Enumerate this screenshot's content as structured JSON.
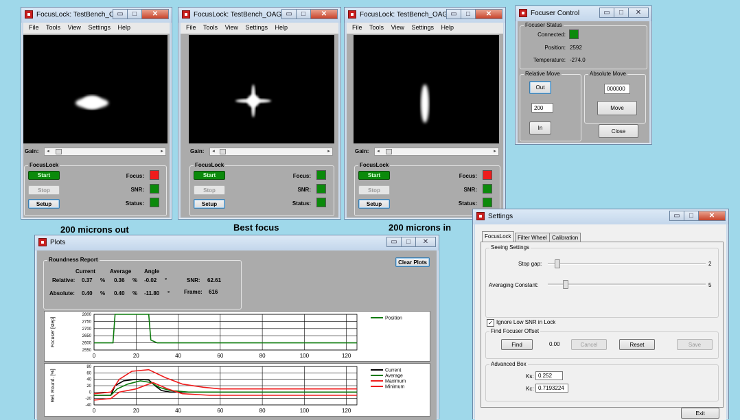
{
  "focuslock_windows": [
    {
      "title": "FocusLock: TestBench_OAG",
      "menu": [
        "File",
        "Tools",
        "View",
        "Settings",
        "Help"
      ],
      "gain_label": "Gain:",
      "group_title": "FocusLock",
      "start_label": "Start",
      "stop_label": "Stop",
      "setup_label": "Setup",
      "focus_label": "Focus:",
      "snr_label": "SNR:",
      "status_label": "Status:",
      "focus_color": "#ee1c1c",
      "snr_color": "#0b8a0b",
      "status_color": "#0b8a0b",
      "star_shape": "horizontal-blob"
    },
    {
      "title": "FocusLock: TestBench_OAG",
      "menu": [
        "File",
        "Tools",
        "View",
        "Settings",
        "Help"
      ],
      "gain_label": "Gain:",
      "group_title": "FocusLock",
      "start_label": "Start",
      "stop_label": "Stop",
      "setup_label": "Setup",
      "focus_label": "Focus:",
      "snr_label": "SNR:",
      "status_label": "Status:",
      "focus_color": "#0b8a0b",
      "snr_color": "#0b8a0b",
      "status_color": "#0b8a0b",
      "star_shape": "cross-star"
    },
    {
      "title": "FocusLock: TestBench_OAG",
      "menu": [
        "File",
        "Tools",
        "View",
        "Settings",
        "Help"
      ],
      "gain_label": "Gain:",
      "group_title": "FocusLock",
      "start_label": "Start",
      "stop_label": "Stop",
      "setup_label": "Setup",
      "focus_label": "Focus:",
      "snr_label": "SNR:",
      "status_label": "Status:",
      "focus_color": "#ee1c1c",
      "snr_color": "#0b8a0b",
      "status_color": "#0b8a0b",
      "star_shape": "vertical-blob"
    }
  ],
  "captions": [
    "200 microns out",
    "Best focus",
    "200 microns in"
  ],
  "focuser": {
    "title": "Focuser Control",
    "status_group": "Focuser Status",
    "connected_label": "Connected:",
    "connected_color": "#0b8a0b",
    "position_label": "Position:",
    "position_value": "2592",
    "temperature_label": "Temperature:",
    "temperature_value": "-274.0",
    "relative_group": "Relative Move",
    "out_label": "Out",
    "step_value": "200",
    "in_label": "In",
    "absolute_group": "Absolute Move",
    "abs_value": "000000",
    "move_label": "Move",
    "close_label": "Close"
  },
  "plots": {
    "title": "Plots",
    "report_group": "Roundness Report",
    "col_current": "Current",
    "col_average": "Average",
    "col_angle": "Angle",
    "relative_label": "Relative:",
    "rel_current": "0.37",
    "rel_average": "0.36",
    "rel_angle": "-0.02",
    "absolute_label": "Absolute:",
    "abs_current": "0.40",
    "abs_average": "0.40",
    "abs_angle": "-11.80",
    "pct": "%",
    "deg": "°",
    "snr_label": "SNR:",
    "snr_value": "62.61",
    "frame_label": "Frame:",
    "frame_value": "616",
    "clear_label": "Clear Plots"
  },
  "settings": {
    "title": "Settings",
    "tabs": [
      "FocusLock",
      "Filter Wheel",
      "Calibration"
    ],
    "seeing_group": "Seeing Settings",
    "stop_gap_label": "Stop gap:",
    "stop_gap_value": "2",
    "averaging_label": "Averaging Constant:",
    "averaging_value": "5",
    "ignore_label": "Ignore Low SNR in Lock",
    "ignore_checked": "✓",
    "offset_group": "Find Focuser Offset",
    "find_label": "Find",
    "offset_value": "0.00",
    "cancel_label": "Cancel",
    "reset_label": "Reset",
    "save_label": "Save",
    "advanced_group": "Advanced Box",
    "ks_label": "Ks:",
    "ks_value": "0.252",
    "kc_label": "Kc:",
    "kc_value": "0.7193224",
    "exit_label": "Exit"
  },
  "chart_data": [
    {
      "type": "line",
      "ylabel": "Focuser [step]",
      "xlim": [
        0,
        125
      ],
      "ylim": [
        2550,
        2800
      ],
      "xticks": [
        "0",
        "20",
        "40",
        "60",
        "80",
        "100",
        "120"
      ],
      "yticks": [
        "2800",
        "2750",
        "2700",
        "2650",
        "2600",
        "2550"
      ],
      "series": [
        {
          "name": "Position",
          "color": "#0b7a0b",
          "points": [
            [
              0,
              2600
            ],
            [
              9,
              2600
            ],
            [
              10,
              2800
            ],
            [
              26,
              2800
            ],
            [
              27,
              2620
            ],
            [
              30,
              2600
            ],
            [
              125,
              2600
            ]
          ]
        }
      ]
    },
    {
      "type": "line",
      "ylabel": "Rel. Round. [%]",
      "xlim": [
        0,
        125
      ],
      "ylim": [
        -40,
        80
      ],
      "xticks": [
        "0",
        "20",
        "40",
        "60",
        "80",
        "100",
        "120"
      ],
      "yticks": [
        "80",
        "60",
        "40",
        "20",
        "0",
        "-20",
        "-40"
      ],
      "series": [
        {
          "name": "Current",
          "color": "#000000",
          "points": [
            [
              0,
              -10
            ],
            [
              8,
              -10
            ],
            [
              10,
              20
            ],
            [
              14,
              35
            ],
            [
              20,
              40
            ],
            [
              26,
              38
            ],
            [
              29,
              20
            ],
            [
              32,
              5
            ],
            [
              36,
              0
            ],
            [
              45,
              0
            ],
            [
              125,
              0
            ]
          ]
        },
        {
          "name": "Average",
          "color": "#0b7a0b",
          "points": [
            [
              0,
              -10
            ],
            [
              8,
              -10
            ],
            [
              11,
              10
            ],
            [
              16,
              25
            ],
            [
              22,
              35
            ],
            [
              27,
              30
            ],
            [
              31,
              15
            ],
            [
              36,
              5
            ],
            [
              45,
              0
            ],
            [
              125,
              0
            ]
          ]
        },
        {
          "name": "Maximum",
          "color": "#ee1c1c",
          "points": [
            [
              0,
              -5
            ],
            [
              8,
              0
            ],
            [
              12,
              40
            ],
            [
              18,
              65
            ],
            [
              26,
              70
            ],
            [
              34,
              45
            ],
            [
              42,
              25
            ],
            [
              52,
              15
            ],
            [
              60,
              10
            ],
            [
              125,
              10
            ]
          ]
        },
        {
          "name": "Minimum",
          "color": "#ee1c1c",
          "points": [
            [
              0,
              -25
            ],
            [
              8,
              -20
            ],
            [
              12,
              0
            ],
            [
              20,
              10
            ],
            [
              28,
              30
            ],
            [
              35,
              10
            ],
            [
              42,
              -5
            ],
            [
              55,
              -10
            ],
            [
              125,
              -10
            ]
          ]
        }
      ]
    }
  ]
}
